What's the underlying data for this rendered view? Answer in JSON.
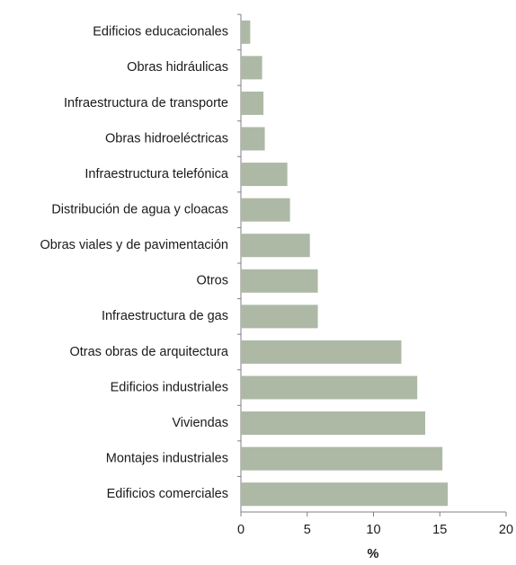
{
  "chart_data": {
    "type": "bar",
    "orientation": "horizontal",
    "categories": [
      "Edificios educacionales",
      "Obras hidráulicas",
      "Infraestructura de transporte",
      "Obras hidroeléctricas",
      "Infraestructura telefónica",
      "Distribución de agua y cloacas",
      "Obras viales y de pavimentación",
      "Otros",
      "Infraestructura de gas",
      "Otras obras de arquitectura",
      "Edificios industriales",
      "Viviendas",
      "Montajes industriales",
      "Edificios comerciales"
    ],
    "values": [
      0.7,
      1.6,
      1.7,
      1.8,
      3.5,
      3.7,
      5.2,
      5.8,
      5.8,
      12.1,
      13.3,
      13.9,
      15.2,
      15.6
    ],
    "color": "#adb9a5",
    "xlim": [
      0,
      20
    ],
    "xticks": [
      0,
      5,
      10,
      15,
      20
    ],
    "x_label": "%",
    "grid": false
  }
}
